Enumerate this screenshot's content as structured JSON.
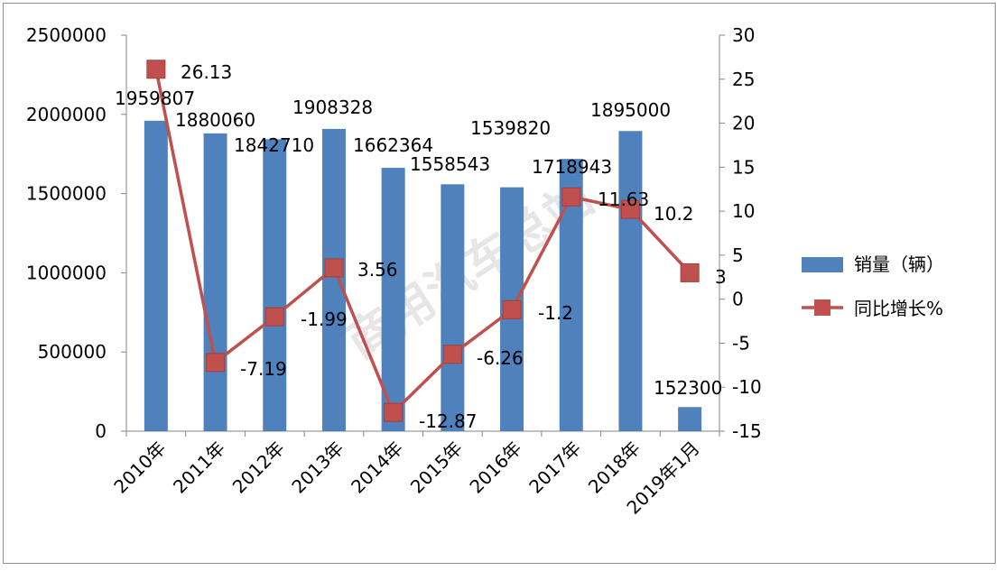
{
  "chart_data": {
    "type": "bar",
    "categories": [
      "2010年",
      "2011年",
      "2012年",
      "2013年",
      "2014年",
      "2015年",
      "2016年",
      "2017年",
      "2018年",
      "2019年1月"
    ],
    "series": [
      {
        "name": "销量（辆）",
        "type": "bar",
        "axis": "left",
        "color": "#4f81bd",
        "values": [
          1959807,
          1880060,
          1842710,
          1908328,
          1662364,
          1558543,
          1539820,
          1718943,
          1895000,
          152300
        ]
      },
      {
        "name": "同比增长%",
        "type": "line",
        "axis": "right",
        "color": "#c0504d",
        "values": [
          26.13,
          -7.19,
          -1.99,
          3.56,
          -12.87,
          -6.26,
          -1.2,
          11.63,
          10.2,
          3
        ]
      }
    ],
    "y_left": {
      "range": [
        0,
        2500000
      ],
      "ticks": [
        "2500000",
        "2000000",
        "1500000",
        "1000000",
        "500000",
        "0"
      ]
    },
    "y_right": {
      "range": [
        -15,
        30
      ],
      "ticks": [
        "30",
        "25",
        "20",
        "15",
        "10",
        "5",
        "0",
        "-5",
        "-10",
        "-15"
      ]
    },
    "bar_labels": [
      "1959807",
      "1880060",
      "1842710",
      "1908328",
      "1662364",
      "1558543",
      "1539820",
      "1718943",
      "1895000",
      "152300"
    ],
    "line_labels": [
      "26.13",
      "-7.19",
      "-1.99",
      "3.56",
      "-12.87",
      "-6.26",
      "-1.2",
      "11.63",
      "10.2",
      "3"
    ],
    "legend": {
      "position": "right",
      "items": [
        {
          "label": "销量（辆）",
          "kind": "bar",
          "color": "#4f81bd"
        },
        {
          "label": "同比增长%",
          "kind": "line",
          "color": "#c0504d"
        }
      ]
    },
    "watermark": "商用汽车总站",
    "grid": false
  }
}
